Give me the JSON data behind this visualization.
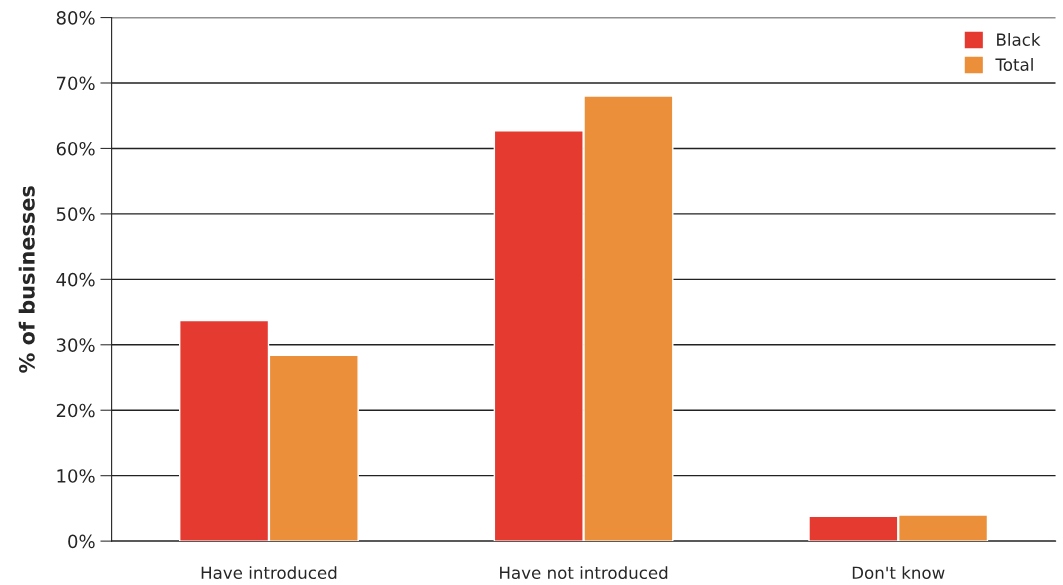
{
  "chart_data": {
    "type": "bar",
    "ylabel": "% of businesses",
    "categories": [
      "Have introduced",
      "Have not introduced",
      "Don't know"
    ],
    "series": [
      {
        "name": "Black",
        "color": "#e53a30",
        "values": [
          33.7,
          62.7,
          3.8
        ]
      },
      {
        "name": "Total",
        "color": "#eb8f3a",
        "values": [
          28.4,
          68.0,
          4.0
        ]
      }
    ],
    "ylim": [
      0,
      80
    ],
    "yticks": [
      {
        "value": 0,
        "label": "0%"
      },
      {
        "value": 10,
        "label": "10%"
      },
      {
        "value": 20,
        "label": "20%"
      },
      {
        "value": 30,
        "label": "30%"
      },
      {
        "value": 40,
        "label": "40%"
      },
      {
        "value": 50,
        "label": "50%"
      },
      {
        "value": 60,
        "label": "60%"
      },
      {
        "value": 70,
        "label": "70%"
      },
      {
        "value": 80,
        "label": "80%"
      }
    ],
    "grid": "y",
    "legend": "top right"
  }
}
